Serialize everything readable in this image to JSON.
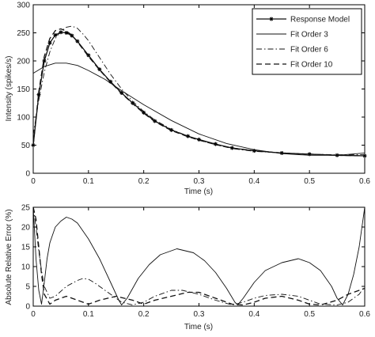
{
  "chart_data": [
    {
      "type": "line",
      "xlabel": "Time (s)",
      "ylabel": "Intensity (spikes/s)",
      "xlim": [
        0,
        0.6
      ],
      "ylim": [
        0,
        300
      ],
      "xticks": [
        "0",
        "0.1",
        "0.2",
        "0.3",
        "0.4",
        "0.5",
        "0.6"
      ],
      "yticks": [
        "0",
        "50",
        "100",
        "150",
        "200",
        "250",
        "300"
      ],
      "grid": false,
      "legend_position": "top-right",
      "series": [
        {
          "name": "Response Model",
          "style": "solid-star",
          "x": [
            0,
            0.01,
            0.02,
            0.03,
            0.04,
            0.05,
            0.06,
            0.07,
            0.08,
            0.1,
            0.12,
            0.14,
            0.16,
            0.18,
            0.2,
            0.22,
            0.25,
            0.28,
            0.3,
            0.33,
            0.36,
            0.4,
            0.45,
            0.5,
            0.55,
            0.6
          ],
          "y": [
            50,
            140,
            200,
            232,
            246,
            251,
            250,
            245,
            235,
            210,
            185,
            163,
            143,
            125,
            108,
            93,
            77,
            66,
            60,
            52,
            45,
            40,
            36,
            34,
            32,
            31
          ]
        },
        {
          "name": "Fit Order 3",
          "style": "solid",
          "x": [
            0,
            0.02,
            0.04,
            0.06,
            0.08,
            0.1,
            0.13,
            0.16,
            0.2,
            0.25,
            0.3,
            0.35,
            0.4,
            0.45,
            0.5,
            0.55,
            0.6
          ],
          "y": [
            178,
            190,
            196,
            196,
            192,
            183,
            167,
            147,
            122,
            94,
            70,
            53,
            42,
            35,
            32,
            32,
            36
          ]
        },
        {
          "name": "Fit Order 6",
          "style": "dashdot",
          "x": [
            0,
            0.01,
            0.02,
            0.03,
            0.04,
            0.05,
            0.06,
            0.07,
            0.08,
            0.09,
            0.1,
            0.12,
            0.14,
            0.16,
            0.18,
            0.2,
            0.22,
            0.25,
            0.28,
            0.3,
            0.33,
            0.36,
            0.4,
            0.45,
            0.5,
            0.55,
            0.6
          ],
          "y": [
            68,
            130,
            180,
            216,
            240,
            253,
            260,
            262,
            258,
            248,
            236,
            206,
            176,
            150,
            128,
            110,
            95,
            78,
            66,
            59,
            51,
            44,
            39,
            36,
            34,
            33,
            33
          ]
        },
        {
          "name": "Fit Order 10",
          "style": "dashed",
          "x": [
            0,
            0.01,
            0.02,
            0.03,
            0.04,
            0.05,
            0.06,
            0.07,
            0.08,
            0.1,
            0.12,
            0.14,
            0.16,
            0.18,
            0.2,
            0.22,
            0.25,
            0.28,
            0.3,
            0.33,
            0.36,
            0.4,
            0.45,
            0.5,
            0.55,
            0.6
          ],
          "y": [
            50,
            145,
            208,
            240,
            254,
            257,
            253,
            246,
            234,
            208,
            184,
            162,
            142,
            124,
            107,
            92,
            76,
            65,
            59,
            51,
            45,
            40,
            36,
            34,
            32,
            31
          ]
        }
      ]
    },
    {
      "type": "line",
      "xlabel": "Time (s)",
      "ylabel": "Absolute Relative Error (%)",
      "xlim": [
        0,
        0.6
      ],
      "ylim": [
        0,
        25
      ],
      "xticks": [
        "0",
        "0.1",
        "0.2",
        "0.3",
        "0.4",
        "0.5",
        "0.6"
      ],
      "yticks": [
        "0",
        "5",
        "10",
        "15",
        "20",
        "25"
      ],
      "grid": false,
      "series": [
        {
          "name": "Fit Order 3",
          "style": "solid",
          "x": [
            0,
            0.005,
            0.01,
            0.015,
            0.02,
            0.025,
            0.03,
            0.04,
            0.05,
            0.06,
            0.07,
            0.08,
            0.1,
            0.12,
            0.14,
            0.155,
            0.16,
            0.17,
            0.19,
            0.21,
            0.23,
            0.26,
            0.29,
            0.31,
            0.33,
            0.35,
            0.365,
            0.37,
            0.38,
            0.4,
            0.42,
            0.45,
            0.48,
            0.5,
            0.52,
            0.54,
            0.55,
            0.56,
            0.57,
            0.58,
            0.59,
            0.6
          ],
          "y": [
            25,
            12,
            4,
            0.5,
            6,
            12,
            16,
            20,
            21.5,
            22.5,
            22,
            21,
            17,
            12,
            6,
            1.5,
            0.3,
            2,
            7,
            10.5,
            13,
            14.5,
            13.5,
            11.5,
            8.5,
            4.5,
            1,
            0.3,
            2,
            6,
            9,
            11,
            12,
            11,
            9,
            5,
            2,
            0.3,
            3,
            8,
            15,
            25
          ]
        },
        {
          "name": "Fit Order 6",
          "style": "dashdot",
          "x": [
            0,
            0.005,
            0.01,
            0.015,
            0.02,
            0.03,
            0.04,
            0.06,
            0.08,
            0.09,
            0.1,
            0.11,
            0.12,
            0.14,
            0.16,
            0.18,
            0.2,
            0.22,
            0.25,
            0.27,
            0.3,
            0.33,
            0.36,
            0.38,
            0.4,
            0.42,
            0.45,
            0.48,
            0.5,
            0.52,
            0.55,
            0.57,
            0.59,
            0.6
          ],
          "y": [
            25,
            20,
            14,
            9,
            5,
            2,
            2.5,
            5,
            6.5,
            7,
            6.8,
            6,
            5,
            3,
            1,
            0.3,
            1,
            2.5,
            4,
            4,
            3,
            1.5,
            0.3,
            1,
            2,
            2.7,
            3,
            2.5,
            1.5,
            0.5,
            0.3,
            1,
            3,
            5
          ]
        },
        {
          "name": "Fit Order 10",
          "style": "dashed",
          "x": [
            0,
            0.005,
            0.01,
            0.015,
            0.02,
            0.03,
            0.04,
            0.06,
            0.08,
            0.1,
            0.12,
            0.15,
            0.18,
            0.2,
            0.22,
            0.25,
            0.28,
            0.3,
            0.33,
            0.36,
            0.38,
            0.4,
            0.42,
            0.45,
            0.48,
            0.5,
            0.52,
            0.55,
            0.57,
            0.59,
            0.6
          ],
          "y": [
            25,
            22,
            15,
            8,
            3,
            0.5,
            1.5,
            2.5,
            1.5,
            0.5,
            1.5,
            2.5,
            1.5,
            0.5,
            1.5,
            2.5,
            3.5,
            3.5,
            2,
            0.5,
            0.3,
            1,
            2,
            2.5,
            1.5,
            0.5,
            0.3,
            1.5,
            3,
            4,
            4.5
          ]
        }
      ]
    }
  ]
}
